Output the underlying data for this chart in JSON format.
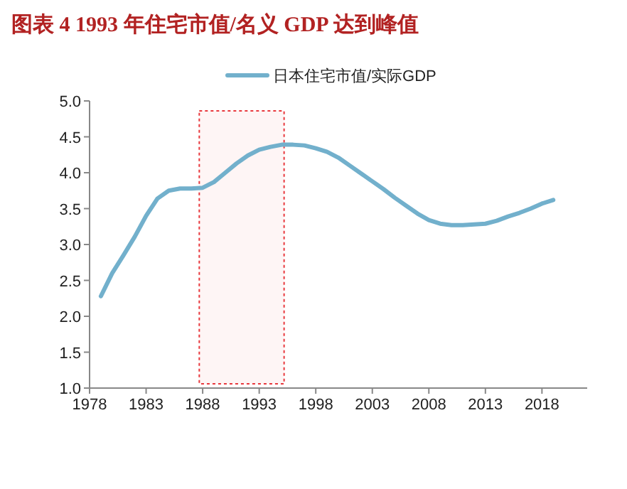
{
  "chart_data": {
    "type": "line",
    "title": "图表 4 1993 年住宅市值/名义 GDP 达到峰值",
    "x": [
      1979,
      1980,
      1981,
      1982,
      1983,
      1984,
      1985,
      1986,
      1987,
      1988,
      1989,
      1990,
      1991,
      1992,
      1993,
      1994,
      1995,
      1996,
      1997,
      1998,
      1999,
      2000,
      2001,
      2002,
      2003,
      2004,
      2005,
      2006,
      2007,
      2008,
      2009,
      2010,
      2011,
      2012,
      2013,
      2014,
      2015,
      2016,
      2017,
      2018,
      2019
    ],
    "series": [
      {
        "name": "日本住宅市值/实际GDP",
        "color": "#72b0cc",
        "values": [
          2.28,
          2.6,
          2.85,
          3.11,
          3.4,
          3.64,
          3.75,
          3.78,
          3.78,
          3.79,
          3.87,
          4.0,
          4.13,
          4.24,
          4.32,
          4.36,
          4.39,
          4.39,
          4.38,
          4.34,
          4.29,
          4.21,
          4.1,
          3.99,
          3.88,
          3.77,
          3.65,
          3.54,
          3.43,
          3.34,
          3.29,
          3.27,
          3.27,
          3.28,
          3.29,
          3.33,
          3.39,
          3.44,
          3.5,
          3.57,
          3.62
        ]
      }
    ],
    "xlim": [
      1978,
      2022
    ],
    "xticks": [
      1978,
      1983,
      1988,
      1993,
      1998,
      2003,
      2008,
      2013,
      2018
    ],
    "ylim": [
      1,
      5
    ],
    "yticks": [
      {
        "value": 1,
        "label": "1.0"
      },
      {
        "value": 1.5,
        "label": "1.5"
      },
      {
        "value": 2,
        "label": "2.0"
      },
      {
        "value": 2.5,
        "label": "2.5"
      },
      {
        "value": 3,
        "label": "3.0"
      },
      {
        "value": 3.5,
        "label": "3.5"
      },
      {
        "value": 4,
        "label": "4.0"
      },
      {
        "value": 4.5,
        "label": "4.5"
      },
      {
        "value": 5,
        "label": "5.0"
      }
    ],
    "bands": [
      {
        "axis": "x",
        "from": 1987.7,
        "to": 1995.2,
        "color": "#e8383d"
      }
    ],
    "legend": "top",
    "grid": false,
    "marker": "none",
    "line_style": "solid"
  }
}
